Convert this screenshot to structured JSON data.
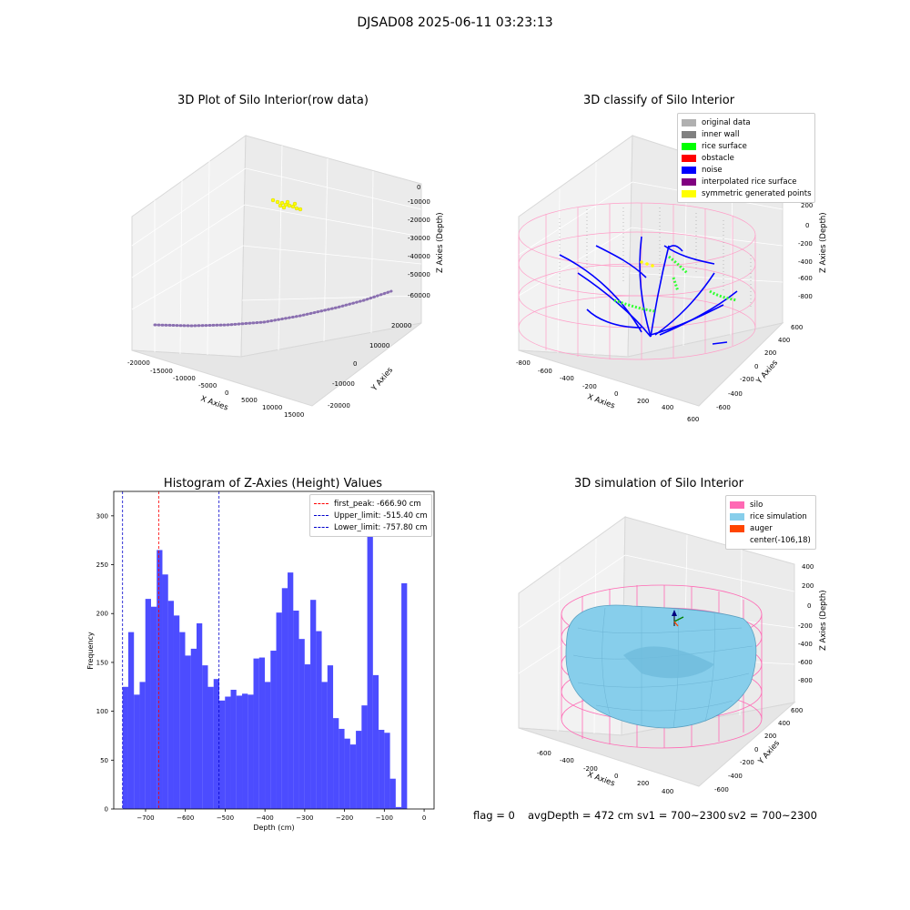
{
  "window": {
    "title": "DJSAD08 2025-06-11 03:23:13"
  },
  "panels": {
    "raw": {
      "title": "3D Plot of Silo Interior(row data)",
      "x_label": "X Axies",
      "y_label": "Y Axies",
      "z_label": "Z Axies (Depth)",
      "x_ticks": [
        "-20000",
        "-15000",
        "-10000",
        "-5000",
        "0",
        "5000",
        "10000",
        "15000"
      ],
      "y_ticks": [
        "20000",
        "10000",
        "0",
        "-10000",
        "-20000"
      ],
      "z_ticks": [
        "0",
        "-10000",
        "-20000",
        "-30000",
        "-40000",
        "-50000",
        "-60000"
      ],
      "colors": {
        "scan_points": "#8a6fb0",
        "symmetric_points": "#ffff00"
      }
    },
    "classify": {
      "title": "3D classify of Silo Interior",
      "x_label": "X Axies",
      "y_label": "Y Axies",
      "z_label": "Z Axies (Depth)",
      "x_ticks": [
        "-800",
        "-600",
        "-400",
        "-200",
        "0",
        "200",
        "400",
        "600"
      ],
      "y_ticks": [
        "600",
        "400",
        "200",
        "0",
        "-200",
        "-400",
        "-600"
      ],
      "z_ticks": [
        "200",
        "0",
        "-200",
        "-400",
        "-600",
        "-800"
      ],
      "legend": [
        {
          "label": "original data",
          "color": "#b0b0b0"
        },
        {
          "label": "inner wall",
          "color": "#808080"
        },
        {
          "label": "rice surface",
          "color": "#00ff00"
        },
        {
          "label": "obstacle",
          "color": "#ff0000"
        },
        {
          "label": "noise",
          "color": "#0000ff"
        },
        {
          "label": "interpolated rice surface",
          "color": "#800080"
        },
        {
          "label": "symmetric generated points",
          "color": "#ffff00"
        }
      ]
    },
    "histogram": {
      "title": "Histogram of Z-Axies (Height) Values",
      "legend": [
        {
          "label": "first_peak: -666.90 cm",
          "color": "#ff0000"
        },
        {
          "label": "Upper_limit: -515.40 cm",
          "color": "#0000cc"
        },
        {
          "label": "Lower_limit: -757.80 cm",
          "color": "#0000cc"
        }
      ]
    },
    "simulation": {
      "title": "3D simulation of Silo Interior",
      "x_label": "X Axies",
      "y_label": "Y Axies",
      "z_label": "Z Axies (Depth)",
      "x_ticks": [
        "-600",
        "-400",
        "-200",
        "0",
        "200",
        "400"
      ],
      "y_ticks": [
        "600",
        "400",
        "200",
        "0",
        "-200",
        "-400",
        "-600"
      ],
      "z_ticks": [
        "400",
        "200",
        "0",
        "-200",
        "-400",
        "-600",
        "-800"
      ],
      "legend": [
        {
          "label": "silo",
          "color": "#ff69b4"
        },
        {
          "label": "rice simulation",
          "color": "#87ceeb"
        },
        {
          "label": "auger",
          "color": "#ff4500"
        },
        {
          "label": "center(-106,18)",
          "color": ""
        }
      ]
    }
  },
  "status": {
    "flag": "flag = 0",
    "avg_depth": "avgDepth = 472 cm",
    "sv1": "sv1 = 700~2300",
    "sv2": "sv2 = 700~2300"
  },
  "chart_data": {
    "type": "bar",
    "title": "Histogram of Z-Axies (Height) Values",
    "xlabel": "Depth (cm)",
    "ylabel": "Frequency",
    "xlim": [
      -780,
      25
    ],
    "ylim": [
      0,
      325
    ],
    "x_ticks": [
      -700,
      -600,
      -500,
      -400,
      -300,
      -200,
      -100,
      0
    ],
    "x_tick_labels": [
      "−700",
      "−600",
      "−500",
      "−400",
      "−300",
      "−200",
      "−100",
      "0"
    ],
    "y_ticks": [
      0,
      50,
      100,
      150,
      200,
      250,
      300
    ],
    "bar_color": "#0000ff",
    "bin_start": -757.8,
    "bin_width": 14.3,
    "values": [
      125,
      181,
      117,
      130,
      215,
      207,
      265,
      240,
      213,
      198,
      181,
      157,
      164,
      190,
      147,
      125,
      133,
      111,
      115,
      122,
      116,
      118,
      117,
      154,
      155,
      130,
      162,
      201,
      226,
      242,
      203,
      174,
      148,
      214,
      182,
      130,
      147,
      93,
      82,
      72,
      66,
      80,
      106,
      290,
      137,
      81,
      78,
      31,
      2,
      231
    ],
    "vlines": [
      {
        "label": "first_peak: -666.90 cm",
        "x": -666.9,
        "color": "#ff0000"
      },
      {
        "label": "Upper_limit: -515.40 cm",
        "x": -515.4,
        "color": "#0000cc"
      },
      {
        "label": "Lower_limit: -757.80 cm",
        "x": -757.8,
        "color": "#0000cc"
      }
    ]
  }
}
